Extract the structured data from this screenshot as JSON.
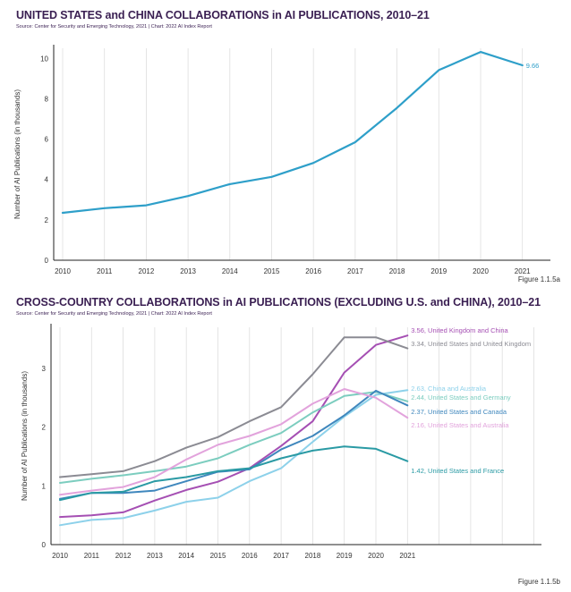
{
  "chart_data": [
    {
      "type": "line",
      "title": "UNITED STATES and CHINA COLLABORATIONS in AI PUBLICATIONS, 2010–21",
      "source": "Source: Center for Security and Emerging Technology, 2021 | Chart: 2022 AI Index Report",
      "figure_label": "Figure 1.1.5a",
      "ylabel": "Number of AI Publications (in thousands)",
      "xlabel": "",
      "x": [
        2010,
        2011,
        2012,
        2013,
        2014,
        2015,
        2016,
        2017,
        2018,
        2019,
        2020,
        2021
      ],
      "ylim": [
        0,
        10.5
      ],
      "yticks": [
        0,
        2,
        4,
        6,
        8,
        10
      ],
      "grid": "vertical",
      "series": [
        {
          "color": "#2e9fc9",
          "values": [
            2.35,
            2.58,
            2.72,
            3.18,
            3.77,
            4.13,
            4.82,
            5.85,
            7.55,
            9.42,
            10.32,
            9.66
          ],
          "end_label": "9.66"
        }
      ]
    },
    {
      "type": "line",
      "title": "CROSS-COUNTRY COLLABORATIONS in AI PUBLICATIONS (EXCLUDING U.S. and CHINA), 2010–21",
      "source": "Source: Center for Security and Emerging Technology, 2021 | Chart: 2022 AI Index Report",
      "figure_label": "Figure 1.1.5b",
      "ylabel": "Number of AI Publications (in thousands)",
      "xlabel": "",
      "x": [
        2010,
        2011,
        2012,
        2013,
        2014,
        2015,
        2016,
        2017,
        2018,
        2019,
        2020,
        2021
      ],
      "ylim": [
        0,
        3.7
      ],
      "yticks": [
        0,
        1,
        2,
        3
      ],
      "grid": "vertical",
      "series": [
        {
          "name": "United Kingdom and China",
          "end_label": "3.56, United Kingdom and China",
          "color": "#a54fb3",
          "values": [
            0.47,
            0.5,
            0.55,
            0.75,
            0.93,
            1.07,
            1.3,
            1.68,
            2.1,
            2.93,
            3.4,
            3.56
          ]
        },
        {
          "name": "United States and United Kingdom",
          "end_label": "3.34, United States and United Kingdom",
          "color": "#8b8b93",
          "values": [
            1.15,
            1.2,
            1.25,
            1.42,
            1.65,
            1.83,
            2.1,
            2.34,
            2.9,
            3.53,
            3.53,
            3.34
          ]
        },
        {
          "name": "China and Australia",
          "end_label": "2.63, China and Australia",
          "color": "#8dd1ea",
          "values": [
            0.33,
            0.42,
            0.45,
            0.58,
            0.73,
            0.8,
            1.08,
            1.3,
            1.75,
            2.18,
            2.55,
            2.63
          ]
        },
        {
          "name": "United States and Germany",
          "end_label": "2.44, United States and Germany",
          "color": "#7ccdbf",
          "values": [
            1.05,
            1.12,
            1.18,
            1.25,
            1.33,
            1.47,
            1.7,
            1.9,
            2.25,
            2.53,
            2.6,
            2.44
          ]
        },
        {
          "name": "United States and Canada",
          "end_label": "2.37, United States and Canada",
          "color": "#3f87bd",
          "values": [
            0.78,
            0.88,
            0.88,
            0.92,
            1.08,
            1.24,
            1.28,
            1.62,
            1.85,
            2.2,
            2.62,
            2.37
          ]
        },
        {
          "name": "United States and Australia",
          "end_label": "2.16, United States and Australia",
          "color": "#e2a3dc",
          "values": [
            0.85,
            0.92,
            0.98,
            1.15,
            1.45,
            1.7,
            1.85,
            2.05,
            2.4,
            2.65,
            2.5,
            2.16
          ]
        },
        {
          "name": "United States and France",
          "end_label": "1.42, United States and France",
          "color": "#2a9aa4",
          "values": [
            0.76,
            0.88,
            0.9,
            1.08,
            1.15,
            1.25,
            1.3,
            1.47,
            1.6,
            1.67,
            1.63,
            1.42
          ]
        }
      ]
    }
  ]
}
